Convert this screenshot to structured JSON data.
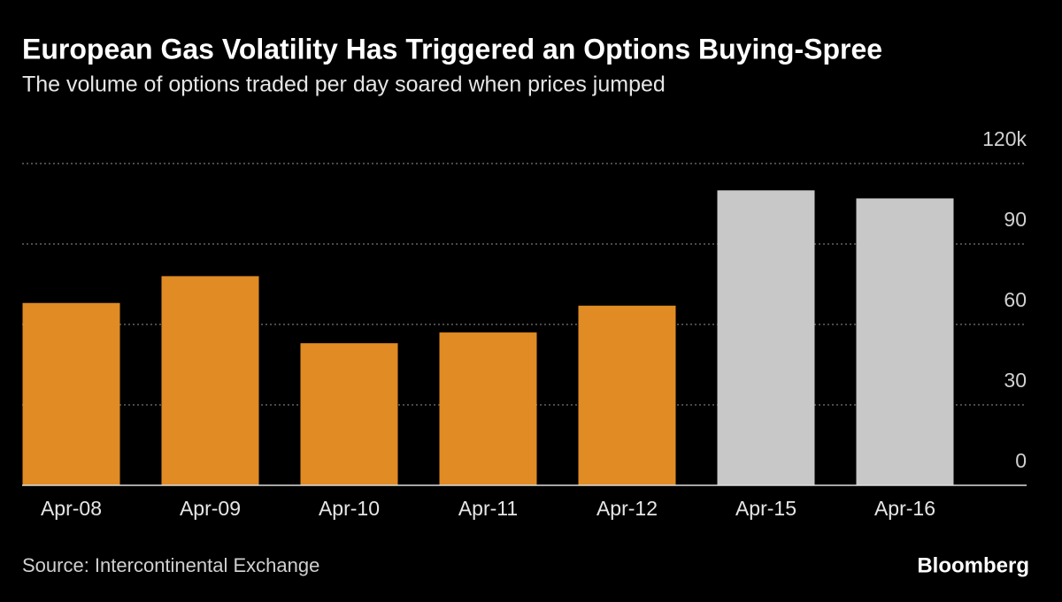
{
  "chart_data": {
    "type": "bar",
    "title": "European Gas Volatility Has Triggered an Options Buying-Spree",
    "subtitle": "The volume of options traded per day soared when prices jumped",
    "source": "Source: Intercontinental Exchange",
    "brand": "Bloomberg",
    "categories": [
      "Apr-08",
      "Apr-09",
      "Apr-10",
      "Apr-11",
      "Apr-12",
      "Apr-15",
      "Apr-16"
    ],
    "values": [
      68,
      78,
      53,
      57,
      67,
      110,
      107
    ],
    "colors": [
      "#e08b24",
      "#e08b24",
      "#e08b24",
      "#e08b24",
      "#e08b24",
      "#c8c8c8",
      "#c8c8c8"
    ],
    "ylim": [
      0,
      120
    ],
    "yticks": [
      0,
      30,
      60,
      90,
      {
        "value": 120,
        "label": "120k"
      }
    ],
    "grid": true
  }
}
